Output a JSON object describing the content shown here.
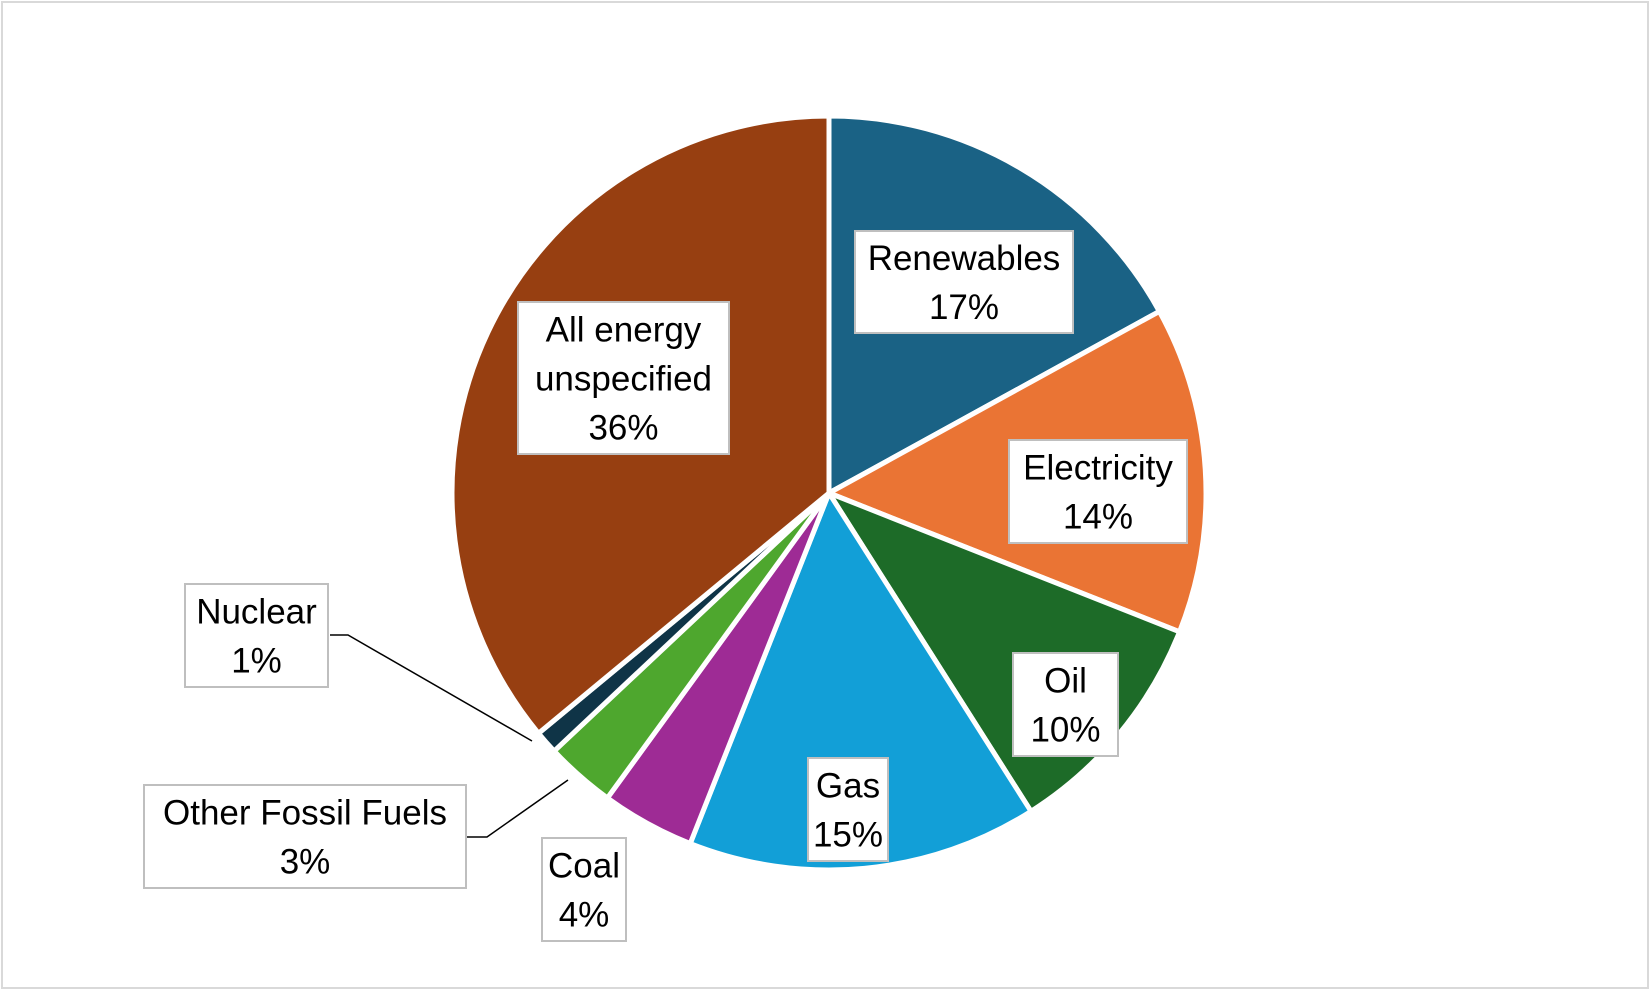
{
  "chart_data": {
    "type": "pie",
    "title": "",
    "slices": [
      {
        "name": "Renewables",
        "value": 17,
        "label": "17%",
        "color": "#1a6285",
        "label_lines": [
          "Renewables",
          "17%"
        ]
      },
      {
        "name": "Electricity",
        "value": 14,
        "label": "14%",
        "color": "#ea7434",
        "label_lines": [
          "Electricity",
          "14%"
        ]
      },
      {
        "name": "Oil",
        "value": 10,
        "label": "10%",
        "color": "#1d6b28",
        "label_lines": [
          "Oil",
          "10%"
        ]
      },
      {
        "name": "Gas",
        "value": 15,
        "label": "15%",
        "color": "#129fd7",
        "label_lines": [
          "Gas",
          "15%"
        ]
      },
      {
        "name": "Coal",
        "value": 4,
        "label": "4%",
        "color": "#9e2b95",
        "label_lines": [
          "Coal",
          "4%"
        ]
      },
      {
        "name": "Other Fossil Fuels",
        "value": 3,
        "label": "3%",
        "color": "#4ea72e",
        "label_lines": [
          "Other Fossil Fuels",
          "3%"
        ]
      },
      {
        "name": "Nuclear",
        "value": 1,
        "label": "1%",
        "color": "#0f3447",
        "label_lines": [
          "Nuclear",
          "1%"
        ]
      },
      {
        "name": "All energy unspecified",
        "value": 36,
        "label": "36%",
        "color": "#973f11",
        "label_lines": [
          "All energy",
          "unspecified",
          "36%"
        ]
      }
    ],
    "start_angle": "12 o'clock, clockwise",
    "legend": "none (data labels)"
  }
}
